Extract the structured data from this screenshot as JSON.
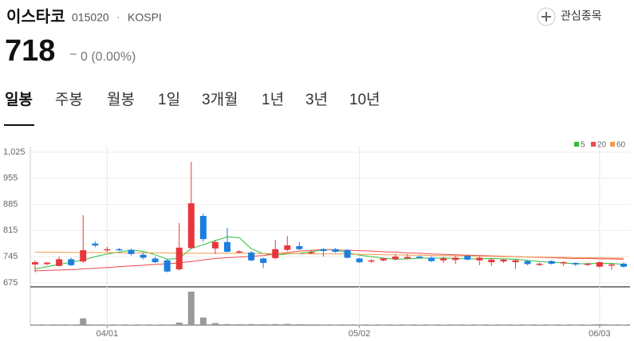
{
  "header": {
    "name": "이스타코",
    "code": "015020",
    "separator": "·",
    "market": "KOSPI",
    "favorite": "관심종목"
  },
  "price": {
    "value": 718,
    "change": "0 (0.00%)"
  },
  "tabs": [
    "일봉",
    "주봉",
    "월봉",
    "1일",
    "3개월",
    "1년",
    "3년",
    "10년"
  ],
  "chart_data": {
    "type": "candlestick",
    "categories": [
      null,
      null,
      null,
      null,
      null,
      null,
      "04/01",
      null,
      null,
      null,
      null,
      null,
      null,
      null,
      null,
      null,
      null,
      null,
      null,
      null,
      null,
      null,
      null,
      null,
      null,
      null,
      null,
      "05/02",
      null,
      null,
      null,
      null,
      null,
      null,
      null,
      null,
      null,
      null,
      null,
      null,
      null,
      null,
      null,
      null,
      null,
      null,
      null,
      "06/03",
      null,
      null
    ],
    "open": [
      724,
      725,
      720,
      738,
      732,
      780,
      762,
      765,
      763,
      750,
      740,
      735,
      711,
      768,
      854,
      767,
      784,
      756,
      756,
      740,
      741,
      763,
      773,
      754,
      765,
      765,
      763,
      740,
      732,
      735,
      738,
      740,
      745,
      742,
      735,
      736,
      747,
      735,
      730,
      732,
      730,
      733,
      723,
      733,
      727,
      728,
      724,
      718,
      722,
      726
    ],
    "high": [
      735,
      730,
      745,
      742,
      856,
      786,
      771,
      768,
      766,
      756,
      745,
      738,
      835,
      999,
      860,
      790,
      822,
      762,
      760,
      742,
      790,
      800,
      784,
      761,
      768,
      768,
      765,
      742,
      738,
      742,
      752,
      752,
      748,
      746,
      745,
      748,
      749,
      745,
      740,
      740,
      738,
      736,
      729,
      735,
      733,
      730,
      728,
      732,
      728,
      730
    ],
    "low": [
      703,
      722,
      718,
      720,
      728,
      770,
      758,
      760,
      748,
      738,
      728,
      703,
      708,
      765,
      785,
      752,
      756,
      754,
      732,
      714,
      738,
      760,
      762,
      752,
      745,
      755,
      740,
      728,
      728,
      732,
      735,
      738,
      740,
      730,
      728,
      725,
      735,
      722,
      720,
      728,
      712,
      722,
      720,
      724,
      720,
      720,
      720,
      716,
      710,
      715
    ],
    "close": [
      730,
      729,
      738,
      722,
      762,
      775,
      765,
      763,
      752,
      742,
      730,
      705,
      769,
      888,
      792,
      784,
      758,
      759,
      735,
      728,
      765,
      775,
      765,
      757,
      760,
      758,
      742,
      730,
      735,
      740,
      745,
      744,
      742,
      733,
      740,
      742,
      737,
      742,
      737,
      737,
      735,
      725,
      726,
      726,
      730,
      724,
      726,
      730,
      724,
      718
    ],
    "volume": [
      3000,
      2000,
      3000,
      2000,
      40000,
      3000,
      2000,
      2000,
      2000,
      2000,
      2000,
      3000,
      15000,
      200000,
      45000,
      12000,
      6000,
      5000,
      6000,
      5000,
      6000,
      7000,
      5000,
      4000,
      3000,
      2000,
      3000,
      2000,
      2000,
      2000,
      2000,
      2000,
      2000,
      2000,
      2000,
      3000,
      2000,
      2000,
      2000,
      3000,
      2000,
      2000,
      2000,
      2000,
      2000,
      2000,
      2000,
      5000,
      3000,
      2000
    ],
    "series": [
      {
        "name": "5",
        "color": "#2bbf3a",
        "values": [
          712,
          718,
          724,
          730,
          736,
          745,
          752,
          757,
          763,
          759,
          750,
          738,
          740,
          767,
          777,
          788,
          798,
          796,
          766,
          753,
          749,
          752,
          754,
          758,
          764,
          763,
          756,
          749,
          745,
          741,
          738,
          739,
          741,
          741,
          741,
          740,
          739,
          739,
          740,
          739,
          738,
          735,
          732,
          730,
          728,
          726,
          726,
          727,
          727,
          724
        ]
      },
      {
        "name": "20",
        "color": "#f0484e",
        "values": [
          707,
          708,
          709,
          710,
          712,
          714,
          716,
          718,
          720,
          722,
          724,
          726,
          728,
          732,
          736,
          740,
          742,
          744,
          746,
          748,
          752,
          756,
          760,
          762,
          764,
          763,
          762,
          761,
          760,
          758,
          757,
          755,
          754,
          752,
          751,
          750,
          749,
          748,
          747,
          746,
          745,
          744,
          743,
          742,
          741,
          740,
          740,
          739,
          739,
          738
        ]
      },
      {
        "name": "60",
        "color": "#f29b4b",
        "values": [
          757,
          757,
          757,
          756,
          756,
          756,
          756,
          755,
          755,
          755,
          755,
          755,
          754,
          754,
          754,
          754,
          754,
          754,
          754,
          753,
          753,
          753,
          753,
          752,
          752,
          752,
          752,
          751,
          751,
          750,
          750,
          749,
          749,
          748,
          748,
          747,
          747,
          746,
          746,
          745,
          745,
          744,
          744,
          743,
          743,
          742,
          742,
          742,
          741,
          741
        ]
      }
    ],
    "up_color": "#e8363c",
    "down_color": "#1a7fe0",
    "volume_color": "#999999",
    "ylim": [
      664,
      1040
    ],
    "yticks": [
      675,
      745,
      815,
      885,
      955,
      {
        "value": 1025,
        "label": "1,025"
      }
    ],
    "grid": true,
    "legend": "top-right"
  }
}
